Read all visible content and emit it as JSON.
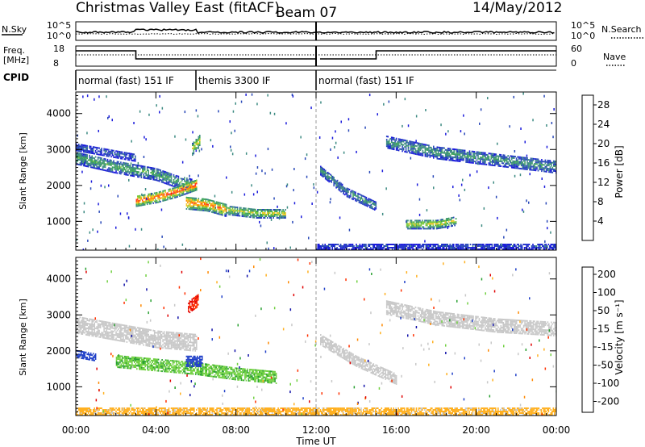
{
  "header": {
    "station": "Christmas Valley East (fitACF)",
    "beam": "Beam 07",
    "date": "14/May/2012"
  },
  "status_panels": {
    "nsky_label": "N.Sky",
    "nsky_ticks": [
      "10^5",
      "10^0"
    ],
    "nsearch_label": "N.Search",
    "nsearch_ticks": [
      "10^5",
      "10^0"
    ],
    "freq_label_line1": "Freq.",
    "freq_label_line2": "[MHz]",
    "freq_ticks": [
      "18",
      "8"
    ],
    "nave_label": "Nave",
    "nave_ticks": [
      "60",
      "0"
    ],
    "cpid_label": "CPID"
  },
  "cpid_segments": [
    {
      "label": "normal (fast) 151 IF",
      "start_hour": 0
    },
    {
      "label": "themis 3300 IF",
      "start_hour": 6
    },
    {
      "label": "normal (fast) 151 IF",
      "start_hour": 12
    }
  ],
  "colors": {
    "power_scale": [
      "#1a1adb",
      "#2848b8",
      "#3c8a82",
      "#3ca25a",
      "#78c83c",
      "#f0c828",
      "#ff8c00",
      "#ff3c1e",
      "#e60000"
    ],
    "velocity_scale": [
      "#1010a8",
      "#2040c8",
      "#28a030",
      "#70d040",
      "#c8c8c8",
      "#c8c8c8",
      "#ffb020",
      "#ff8800",
      "#ff3000",
      "#e00000"
    ],
    "gray": "#c8c8c8"
  },
  "chart_data": [
    {
      "type": "heatmap",
      "name": "power",
      "xlabel": "Time UT",
      "ylabel": "Slant Range [km]",
      "x_range_hours": [
        0,
        24
      ],
      "x_ticks": [
        "00:00",
        "04:00",
        "08:00",
        "12:00",
        "16:00",
        "20:00",
        "00:00"
      ],
      "ylim": [
        200,
        4600
      ],
      "y_ticks": [
        1000,
        2000,
        3000,
        4000
      ],
      "colorbar_label": "Power [dB]",
      "colorbar_ticks": [
        4,
        8,
        12,
        16,
        20,
        24,
        28
      ],
      "colorbar_range": [
        0,
        30
      ],
      "bands": [
        {
          "x": [
            0,
            2,
            4,
            5,
            5.8
          ],
          "y": [
            2750,
            2500,
            2300,
            2100,
            2000
          ],
          "width": 350,
          "value": 12
        },
        {
          "x": [
            0,
            1.5,
            3
          ],
          "y": [
            3050,
            2900,
            2750
          ],
          "width": 200,
          "value": 6
        },
        {
          "x": [
            3,
            4,
            5,
            6
          ],
          "y": [
            1550,
            1650,
            1800,
            2000
          ],
          "width": 300,
          "value": 26
        },
        {
          "x": [
            5.8,
            6.2
          ],
          "y": [
            3000,
            3250
          ],
          "width": 350,
          "value": 18
        },
        {
          "x": [
            5.5,
            6.5,
            7.5
          ],
          "y": [
            1500,
            1450,
            1300
          ],
          "width": 350,
          "value": 24
        },
        {
          "x": [
            7.5,
            9,
            10.5
          ],
          "y": [
            1300,
            1200,
            1200
          ],
          "width": 250,
          "value": 18
        },
        {
          "x": [
            12.2,
            13.5,
            15
          ],
          "y": [
            2400,
            1800,
            1400
          ],
          "width": 250,
          "value": 10
        },
        {
          "x": [
            15.5,
            18,
            21,
            24
          ],
          "y": [
            3200,
            2900,
            2700,
            2500
          ],
          "width": 350,
          "value": 10
        },
        {
          "x": [
            16.5,
            18,
            19
          ],
          "y": [
            900,
            900,
            1000
          ],
          "width": 250,
          "value": 18
        },
        {
          "x": [
            12,
            24
          ],
          "y": [
            280,
            280
          ],
          "width": 160,
          "value": 5
        }
      ]
    },
    {
      "type": "heatmap",
      "name": "velocity",
      "xlabel": "Time UT",
      "ylabel": "Slant Range [km]",
      "x_range_hours": [
        0,
        24
      ],
      "x_ticks": [
        "00:00",
        "04:00",
        "08:00",
        "12:00",
        "16:00",
        "20:00",
        "00:00"
      ],
      "ylim": [
        200,
        4600
      ],
      "y_ticks": [
        1000,
        2000,
        3000,
        4000
      ],
      "colorbar_label": "Velocity [m s⁻¹]",
      "colorbar_ticks": [
        200,
        100,
        50,
        15,
        -15,
        -50,
        -100,
        -200
      ],
      "bands": [
        {
          "x": [
            0,
            2,
            4,
            6
          ],
          "y": [
            2700,
            2500,
            2300,
            2200
          ],
          "width": 450,
          "value": 0
        },
        {
          "x": [
            2,
            4,
            6,
            8,
            10
          ],
          "y": [
            1700,
            1600,
            1500,
            1350,
            1250
          ],
          "width": 350,
          "value": 40
        },
        {
          "x": [
            5.5,
            6.3
          ],
          "y": [
            1700,
            1700
          ],
          "width": 300,
          "value": 150
        },
        {
          "x": [
            5.6,
            6.1
          ],
          "y": [
            3200,
            3400
          ],
          "width": 350,
          "value": -200
        },
        {
          "x": [
            0,
            1
          ],
          "y": [
            1900,
            1800
          ],
          "width": 200,
          "value": 150
        },
        {
          "x": [
            12.2,
            14,
            16
          ],
          "y": [
            2300,
            1700,
            1200
          ],
          "width": 300,
          "value": 0
        },
        {
          "x": [
            15.5,
            18,
            21,
            24
          ],
          "y": [
            3200,
            2900,
            2700,
            2600
          ],
          "width": 400,
          "value": 0
        },
        {
          "x": [
            0,
            12,
            24
          ],
          "y": [
            300,
            300,
            300
          ],
          "width": 200,
          "value": -30
        }
      ]
    }
  ]
}
